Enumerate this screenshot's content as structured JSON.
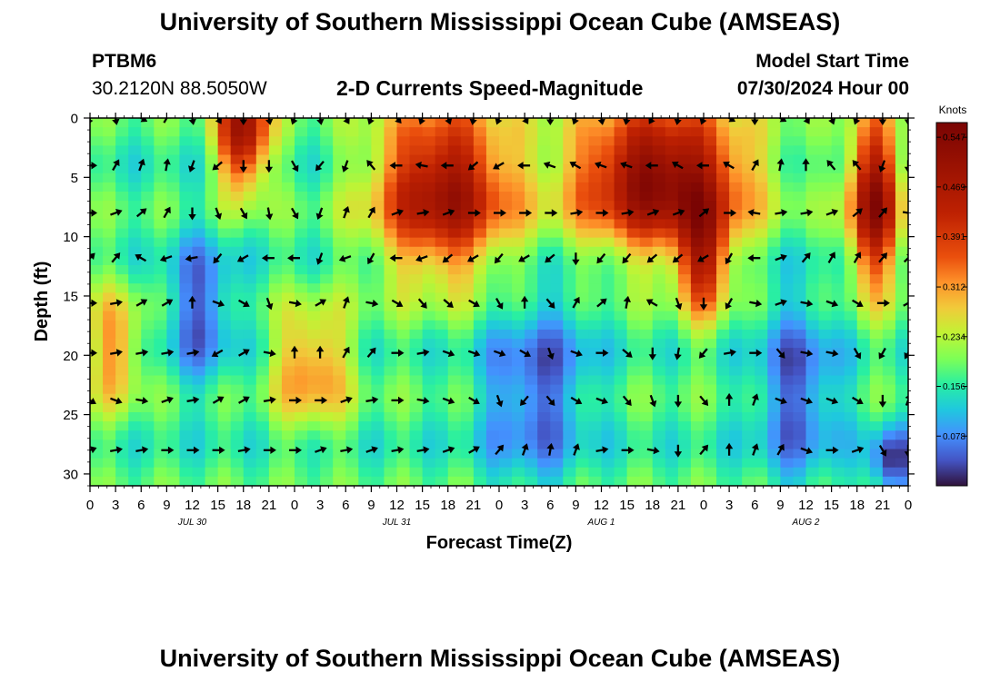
{
  "header": {
    "title": "University of Southern Mississippi Ocean Cube (AMSEAS)",
    "station_id": "PTBM6",
    "station_coords": "30.2120N  88.5050W",
    "product": "2-D Currents Speed-Magnitude",
    "model_start_label": "Model Start Time",
    "model_start_value": "07/30/2024 Hour 00"
  },
  "footer": {
    "title": "University of Southern Mississippi Ocean Cube (AMSEAS)"
  },
  "chart_data": {
    "type": "heatmap",
    "title": "2-D Currents Speed-Magnitude",
    "xlabel": "Forecast Time(Z)",
    "ylabel": "Depth (ft)",
    "xlim": [
      0,
      96
    ],
    "ylim": [
      31,
      0
    ],
    "x_tick_hours": [
      0,
      3,
      6,
      9,
      12,
      15,
      18,
      21,
      24,
      27,
      30,
      33,
      36,
      39,
      42,
      45,
      48,
      51,
      54,
      57,
      60,
      63,
      66,
      69,
      72,
      75,
      78,
      81,
      84,
      87,
      90,
      93,
      96
    ],
    "x_tick_labels": [
      "0",
      "3",
      "6",
      "9",
      "12",
      "15",
      "18",
      "21",
      "0",
      "3",
      "6",
      "9",
      "12",
      "15",
      "18",
      "21",
      "0",
      "3",
      "6",
      "9",
      "12",
      "15",
      "18",
      "21",
      "0",
      "3",
      "6",
      "9",
      "12",
      "15",
      "18",
      "21",
      "0"
    ],
    "date_labels": [
      {
        "hour": 12,
        "text": "JUL 30"
      },
      {
        "hour": 36,
        "text": "JUL 31"
      },
      {
        "hour": 60,
        "text": "AUG 1"
      },
      {
        "hour": 84,
        "text": "AUG 2"
      }
    ],
    "y_ticks": [
      0,
      5,
      10,
      15,
      20,
      25,
      30
    ],
    "colorbar": {
      "title": "Knots",
      "min": 0.0,
      "max": 0.57,
      "tick_values": [
        0.078,
        0.156,
        0.234,
        0.312,
        0.391,
        0.469,
        0.547
      ],
      "tick_labels": [
        "0.078",
        "0.156",
        "0.234",
        "0.312",
        "0.391",
        "0.469",
        "0.547"
      ]
    },
    "speed_features": [
      {
        "t": 18,
        "z": 1,
        "v": 0.5,
        "st": 3,
        "sz": 5
      },
      {
        "t": 3,
        "z": 19.5,
        "v": 0.32,
        "st": 3,
        "sz": 5
      },
      {
        "t": 26,
        "z": 21,
        "v": 0.33,
        "st": 4.5,
        "sz": 5
      },
      {
        "t": 41.5,
        "z": 6,
        "v": 0.5,
        "st": 8,
        "sz": 7
      },
      {
        "t": 67,
        "z": 5,
        "v": 0.55,
        "st": 10,
        "sz": 6
      },
      {
        "t": 72,
        "z": 12,
        "v": 0.4,
        "st": 3,
        "sz": 5
      },
      {
        "t": 92,
        "z": 7,
        "v": 0.52,
        "st": 3,
        "sz": 7
      },
      {
        "t": 13,
        "z": 16,
        "v": 0.05,
        "st": 4,
        "sz": 6
      },
      {
        "t": 52,
        "z": 23,
        "v": 0.05,
        "st": 6,
        "sz": 8
      },
      {
        "t": 83,
        "z": 23,
        "v": 0.05,
        "st": 5,
        "sz": 8
      },
      {
        "t": 94,
        "z": 29,
        "v": 0.02,
        "st": 2.5,
        "sz": 3
      },
      {
        "t": 57,
        "z": 19,
        "v": 0.15,
        "st": 3,
        "sz": 6
      }
    ],
    "arrow_depths": [
      0,
      4,
      8,
      11.8,
      15.6,
      19.8,
      23.8,
      28
    ],
    "arrow_hours": [
      0,
      3,
      6,
      9,
      12,
      15,
      18,
      21,
      24,
      27,
      30,
      33,
      36,
      39,
      42,
      45,
      48,
      51,
      54,
      57,
      60,
      63,
      66,
      69,
      72,
      75,
      78,
      81,
      84,
      87,
      90,
      93,
      96
    ],
    "arrow_directions_deg": [
      [
        200,
        170,
        120,
        30,
        170,
        150,
        180,
        170,
        200,
        170,
        150,
        200,
        140,
        200,
        160,
        190,
        200,
        150,
        180,
        200,
        170,
        190,
        210,
        190,
        200,
        120,
        180,
        120,
        150,
        160,
        200,
        180,
        180
      ],
      [
        90,
        30,
        20,
        10,
        200,
        230,
        180,
        180,
        150,
        220,
        200,
        320,
        270,
        280,
        270,
        230,
        240,
        270,
        290,
        300,
        290,
        290,
        270,
        300,
        270,
        300,
        30,
        10,
        0,
        320,
        320,
        200,
        180
      ],
      [
        90,
        70,
        50,
        30,
        180,
        160,
        150,
        170,
        150,
        200,
        20,
        30,
        70,
        80,
        70,
        90,
        90,
        90,
        90,
        80,
        90,
        80,
        70,
        70,
        50,
        90,
        280,
        80,
        80,
        70,
        50,
        40,
        100
      ],
      [
        45,
        40,
        300,
        250,
        260,
        220,
        240,
        270,
        270,
        200,
        250,
        210,
        270,
        250,
        230,
        240,
        220,
        240,
        230,
        180,
        220,
        220,
        230,
        230,
        240,
        210,
        270,
        70,
        40,
        30,
        30,
        40,
        45
      ],
      [
        90,
        80,
        60,
        60,
        0,
        110,
        120,
        160,
        100,
        60,
        20,
        100,
        120,
        140,
        130,
        120,
        150,
        0,
        140,
        30,
        50,
        10,
        300,
        160,
        180,
        210,
        100,
        70,
        100,
        110,
        120,
        90,
        60
      ],
      [
        90,
        80,
        80,
        80,
        80,
        240,
        60,
        100,
        0,
        0,
        30,
        40,
        90,
        80,
        110,
        110,
        110,
        120,
        160,
        110,
        90,
        130,
        180,
        190,
        220,
        80,
        90,
        140,
        100,
        100,
        150,
        210,
        210
      ],
      [
        120,
        110,
        100,
        70,
        80,
        60,
        60,
        80,
        90,
        90,
        70,
        80,
        90,
        100,
        110,
        120,
        160,
        220,
        140,
        120,
        110,
        140,
        160,
        180,
        140,
        0,
        20,
        110,
        110,
        110,
        120,
        180,
        20
      ],
      [
        70,
        80,
        80,
        90,
        90,
        90,
        80,
        90,
        90,
        70,
        80,
        70,
        80,
        80,
        70,
        60,
        40,
        20,
        10,
        20,
        80,
        90,
        100,
        180,
        40,
        0,
        20,
        30,
        110,
        90,
        70,
        150,
        180
      ]
    ]
  }
}
